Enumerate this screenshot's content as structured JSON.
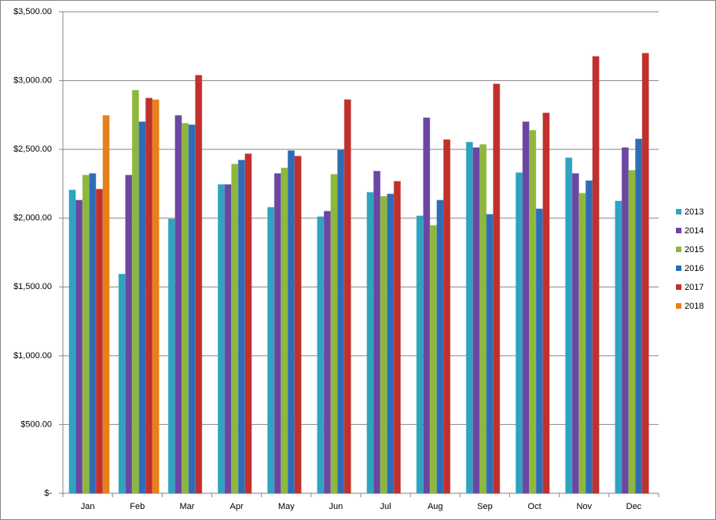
{
  "chart_data": {
    "type": "bar",
    "categories": [
      "Jan",
      "Feb",
      "Mar",
      "Apr",
      "May",
      "Jun",
      "Jul",
      "Aug",
      "Sep",
      "Oct",
      "Nov",
      "Dec"
    ],
    "series": [
      {
        "name": "2013",
        "color": "#2fa3c0",
        "values": [
          2204,
          1593,
          1993,
          2244,
          2078,
          2010,
          2187,
          2016,
          2552,
          2330,
          2438,
          2124
        ]
      },
      {
        "name": "2014",
        "color": "#6b46a3",
        "values": [
          2130,
          2312,
          2746,
          2244,
          2324,
          2050,
          2341,
          2729,
          2512,
          2700,
          2324,
          2512
        ]
      },
      {
        "name": "2015",
        "color": "#8db83c",
        "values": [
          2312,
          2929,
          2689,
          2392,
          2364,
          2318,
          2158,
          1947,
          2535,
          2638,
          2181,
          2347
        ]
      },
      {
        "name": "2016",
        "color": "#2f6cb7",
        "values": [
          2324,
          2700,
          2678,
          2421,
          2490,
          2495,
          2175,
          2130,
          2027,
          2067,
          2272,
          2575
        ]
      },
      {
        "name": "2017",
        "color": "#c0302d",
        "values": [
          2210,
          2872,
          3038,
          2467,
          2450,
          2861,
          2267,
          2570,
          2975,
          2764,
          3175,
          3198
        ]
      },
      {
        "name": "2018",
        "color": "#e5801b",
        "values": [
          2746,
          2860,
          null,
          null,
          null,
          null,
          null,
          null,
          null,
          null,
          null,
          null
        ]
      }
    ],
    "ylim": [
      0,
      3500
    ],
    "yticks": [
      {
        "value": 0,
        "label": "$-"
      },
      {
        "value": 500,
        "label": "$500.00"
      },
      {
        "value": 1000,
        "label": "$1,000.00"
      },
      {
        "value": 1500,
        "label": "$1,500.00"
      },
      {
        "value": 2000,
        "label": "$2,000.00"
      },
      {
        "value": 2500,
        "label": "$2,500.00"
      },
      {
        "value": 3000,
        "label": "$3,000.00"
      },
      {
        "value": 3500,
        "label": "$3,500.00"
      }
    ],
    "grid": true,
    "legend": "right"
  }
}
